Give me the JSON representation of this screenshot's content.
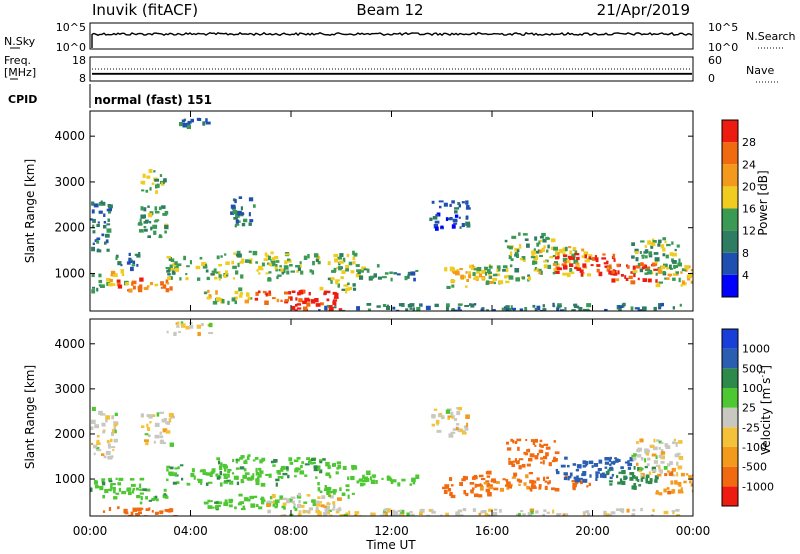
{
  "header": {
    "station": "Inuvik (fitACF)",
    "beam": "Beam 12",
    "date": "21/Apr/2019"
  },
  "colors": {
    "power_scale": [
      "#0000ff",
      "#1f4fb0",
      "#2e7d62",
      "#3a9a54",
      "#f0cc20",
      "#f39a1c",
      "#f26a10",
      "#ee1c10"
    ],
    "velocity_scale": [
      "#ee1c10",
      "#f26a10",
      "#f39a1c",
      "#f4c23a",
      "#c8c8c0",
      "#4ec832",
      "#2e8a4a",
      "#2a5eb0",
      "#1a3ed8"
    ]
  },
  "chart_data": [
    {
      "type": "line",
      "name": "sky-noise-search-noise",
      "left_label": "N.Sky",
      "right_label": "N.Search",
      "left_ticks": [
        "10^5",
        "10^0"
      ],
      "right_ticks": [
        "10^5",
        "10^0"
      ],
      "note": "N.Sky solid trace near 10^4 across the whole day; N.Search dotted"
    },
    {
      "type": "line",
      "name": "frequency-nave",
      "left_label_line1": "Freq.",
      "left_label_line2": "[MHz]",
      "right_label": "Nave",
      "left_ticks": [
        "18",
        "8"
      ],
      "right_ticks": [
        "60",
        "0"
      ],
      "freq_mhz": 11,
      "nave": 30
    },
    {
      "type": "table",
      "name": "cpid",
      "label": "CPID",
      "mode_text": "normal (fast) 151"
    },
    {
      "type": "heatmap",
      "name": "power",
      "ylabel": "Slant Range [km]",
      "yticks": [
        1000,
        2000,
        3000,
        4000
      ],
      "ylim": [
        180,
        4550
      ],
      "xlim_hours": [
        0,
        24
      ],
      "colorbar_label": "Power [dB]",
      "colorbar_ticks": [
        4,
        8,
        12,
        16,
        20,
        24,
        28
      ],
      "clim": [
        0,
        30
      ],
      "blobs": [
        {
          "t": [
            0.0,
            0.5
          ],
          "r": [
            650,
            1050
          ],
          "v": 10
        },
        {
          "t": [
            0.0,
            0.8
          ],
          "r": [
            1500,
            2600
          ],
          "v": 8
        },
        {
          "t": [
            0.5,
            1.5
          ],
          "r": [
            750,
            1100
          ],
          "v": 18
        },
        {
          "t": [
            1.0,
            2.0
          ],
          "r": [
            650,
            950
          ],
          "v": 26
        },
        {
          "t": [
            2.0,
            3.2
          ],
          "r": [
            650,
            900
          ],
          "v": 22
        },
        {
          "t": [
            1.0,
            2.0
          ],
          "r": [
            1100,
            1500
          ],
          "v": 10
        },
        {
          "t": [
            1.8,
            3.0
          ],
          "r": [
            1800,
            2500
          ],
          "v": 12
        },
        {
          "t": [
            2.0,
            3.0
          ],
          "r": [
            2800,
            3300
          ],
          "v": 14
        },
        {
          "t": [
            3.0,
            5.0
          ],
          "r": [
            900,
            1400
          ],
          "v": 14
        },
        {
          "t": [
            3.5,
            4.8
          ],
          "r": [
            4250,
            4500
          ],
          "v": 9
        },
        {
          "t": [
            4.5,
            6.5
          ],
          "r": [
            400,
            700
          ],
          "v": 16
        },
        {
          "t": [
            5.0,
            7.5
          ],
          "r": [
            900,
            1500
          ],
          "v": 15
        },
        {
          "t": [
            5.5,
            6.5
          ],
          "r": [
            2000,
            2700
          ],
          "v": 8
        },
        {
          "t": [
            6.5,
            8.5
          ],
          "r": [
            380,
            650
          ],
          "v": 26
        },
        {
          "t": [
            8.0,
            10.0
          ],
          "r": [
            200,
            650
          ],
          "v": 29
        },
        {
          "t": [
            7.5,
            10.5
          ],
          "r": [
            1050,
            1500
          ],
          "v": 14
        },
        {
          "t": [
            9.0,
            10.5
          ],
          "r": [
            650,
            950
          ],
          "v": 13
        },
        {
          "t": [
            10.5,
            11.5
          ],
          "r": [
            900,
            1250
          ],
          "v": 12
        },
        {
          "t": [
            11.5,
            13.0
          ],
          "r": [
            900,
            1100
          ],
          "v": 10
        },
        {
          "t": [
            13.5,
            15.0
          ],
          "r": [
            2000,
            2600
          ],
          "v": 6
        },
        {
          "t": [
            14.0,
            16.0
          ],
          "r": [
            700,
            1200
          ],
          "v": 18
        },
        {
          "t": [
            15.5,
            17.5
          ],
          "r": [
            800,
            1200
          ],
          "v": 14
        },
        {
          "t": [
            16.5,
            18.5
          ],
          "r": [
            1300,
            1900
          ],
          "v": 13
        },
        {
          "t": [
            17.5,
            20.0
          ],
          "r": [
            1000,
            1600
          ],
          "v": 16
        },
        {
          "t": [
            18.5,
            21.0
          ],
          "r": [
            1000,
            1450
          ],
          "v": 29
        },
        {
          "t": [
            20.5,
            22.5
          ],
          "r": [
            850,
            1250
          ],
          "v": 26
        },
        {
          "t": [
            21.5,
            23.5
          ],
          "r": [
            1000,
            1800
          ],
          "v": 13
        },
        {
          "t": [
            22.5,
            24.0
          ],
          "r": [
            700,
            1200
          ],
          "v": 18
        },
        {
          "t": [
            9.0,
            23.5
          ],
          "r": [
            200,
            360
          ],
          "v": 9
        }
      ]
    },
    {
      "type": "heatmap",
      "name": "velocity",
      "ylabel": "Slant Range [km]",
      "yticks": [
        1000,
        2000,
        3000,
        4000
      ],
      "ylim": [
        180,
        4550
      ],
      "xlim_hours": [
        0,
        24
      ],
      "xticks": [
        "00:00",
        "04:00",
        "08:00",
        "12:00",
        "16:00",
        "20:00",
        "00:00"
      ],
      "xlabel": "Time UT",
      "colorbar_label_main": "Velocity [m s",
      "colorbar_label_sup": "-1",
      "colorbar_label_close": "]",
      "colorbar_ticks": [
        1000,
        500,
        100,
        25,
        -25,
        -100,
        -500,
        -1000
      ],
      "blobs": [
        {
          "t": [
            0.0,
            0.8
          ],
          "r": [
            600,
            1050
          ],
          "v": 80
        },
        {
          "t": [
            0.0,
            1.0
          ],
          "r": [
            1500,
            2600
          ],
          "v": 0
        },
        {
          "t": [
            0.8,
            2.0
          ],
          "r": [
            600,
            1050
          ],
          "v": 60
        },
        {
          "t": [
            1.5,
            3.0
          ],
          "r": [
            500,
            800
          ],
          "v": 80
        },
        {
          "t": [
            0.5,
            3.5
          ],
          "r": [
            180,
            400
          ],
          "v": -250
        },
        {
          "t": [
            2.0,
            3.2
          ],
          "r": [
            1800,
            2500
          ],
          "v": 0
        },
        {
          "t": [
            3.0,
            4.8
          ],
          "r": [
            4250,
            4500
          ],
          "v": 0
        },
        {
          "t": [
            3.0,
            5.5
          ],
          "r": [
            900,
            1350
          ],
          "v": 80
        },
        {
          "t": [
            4.5,
            6.5
          ],
          "r": [
            350,
            700
          ],
          "v": 80
        },
        {
          "t": [
            5.0,
            7.5
          ],
          "r": [
            900,
            1550
          ],
          "v": 80
        },
        {
          "t": [
            6.5,
            8.5
          ],
          "r": [
            350,
            650
          ],
          "v": 60
        },
        {
          "t": [
            7.5,
            10.5
          ],
          "r": [
            1050,
            1500
          ],
          "v": 80
        },
        {
          "t": [
            7.0,
            10.0
          ],
          "r": [
            200,
            700
          ],
          "v": 0
        },
        {
          "t": [
            9.0,
            10.5
          ],
          "r": [
            650,
            950
          ],
          "v": 70
        },
        {
          "t": [
            10.5,
            11.5
          ],
          "r": [
            900,
            1250
          ],
          "v": 60
        },
        {
          "t": [
            11.5,
            13.0
          ],
          "r": [
            900,
            1100
          ],
          "v": 60
        },
        {
          "t": [
            13.5,
            15.0
          ],
          "r": [
            2000,
            2600
          ],
          "v": 0
        },
        {
          "t": [
            14.0,
            16.0
          ],
          "r": [
            650,
            1100
          ],
          "v": -200
        },
        {
          "t": [
            15.5,
            17.5
          ],
          "r": [
            800,
            1200
          ],
          "v": -100
        },
        {
          "t": [
            16.5,
            18.5
          ],
          "r": [
            1300,
            1900
          ],
          "v": -150
        },
        {
          "t": [
            17.5,
            20.0
          ],
          "r": [
            800,
            1100
          ],
          "v": -200
        },
        {
          "t": [
            18.5,
            21.5
          ],
          "r": [
            1000,
            1500
          ],
          "v": 800
        },
        {
          "t": [
            20.5,
            22.5
          ],
          "r": [
            850,
            1300
          ],
          "v": 300
        },
        {
          "t": [
            21.5,
            23.5
          ],
          "r": [
            1100,
            1900
          ],
          "v": 0
        },
        {
          "t": [
            22.5,
            24.0
          ],
          "r": [
            700,
            1200
          ],
          "v": -80
        },
        {
          "t": [
            9.0,
            23.5
          ],
          "r": [
            200,
            360
          ],
          "v": 0
        }
      ]
    }
  ]
}
